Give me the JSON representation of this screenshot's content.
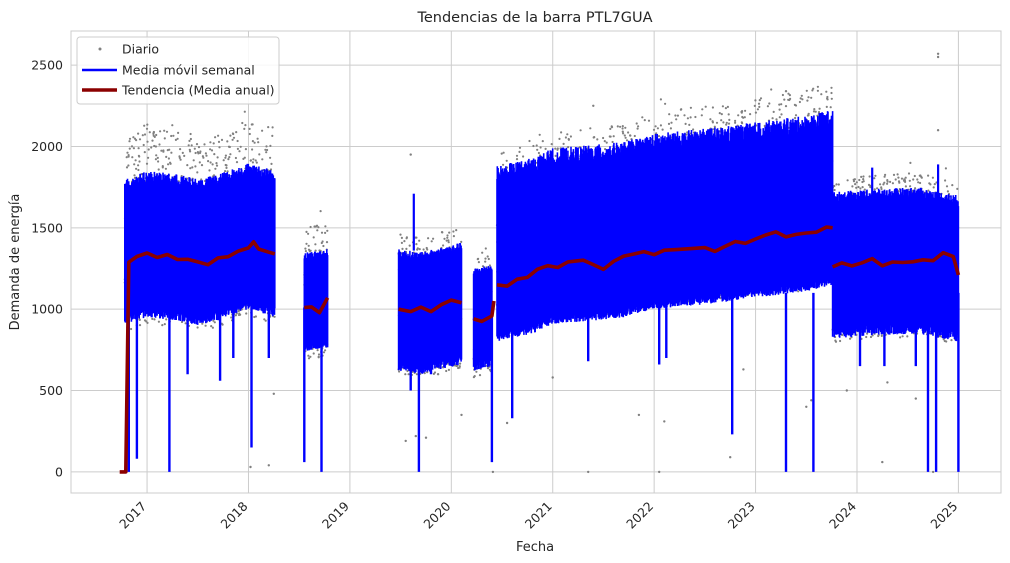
{
  "chart_data": {
    "type": "line",
    "title": "Tendencias de la barra PTL7GUA",
    "xlabel": "Fecha",
    "ylabel": "Demanda de energía",
    "xlim": [
      2016.25,
      2025.42
    ],
    "ylim": [
      -130,
      2710
    ],
    "x_ticks": [
      2017,
      2018,
      2019,
      2020,
      2021,
      2022,
      2023,
      2024,
      2025
    ],
    "x_tick_labels": [
      "2017",
      "2018",
      "2019",
      "2020",
      "2021",
      "2022",
      "2023",
      "2024",
      "2025"
    ],
    "y_ticks": [
      0,
      500,
      1000,
      1500,
      2000,
      2500
    ],
    "y_tick_labels": [
      "0",
      "500",
      "1000",
      "1500",
      "2000",
      "2500"
    ],
    "grid": true,
    "legend_position": "top-left",
    "colors": {
      "daily": "#808080",
      "weekly": "#0000ff",
      "trend": "#8b0000",
      "grid": "#cccccc"
    },
    "series": [
      {
        "name": "Diario",
        "kind": "points",
        "segments": [
          {
            "x0": 2016.78,
            "x1": 2018.26,
            "mid": [
              [
                2016.78,
                1300
              ],
              [
                2017.0,
                1350
              ],
              [
                2017.3,
                1330
              ],
              [
                2017.5,
                1300
              ],
              [
                2017.7,
                1330
              ],
              [
                2018.0,
                1400
              ],
              [
                2018.26,
                1350
              ]
            ],
            "upper": 2050,
            "lower": 860
          },
          {
            "x0": 2018.55,
            "x1": 2018.78,
            "mid": [
              [
                2018.55,
                1010
              ],
              [
                2018.78,
                1030
              ]
            ],
            "upper": 1500,
            "lower": 680
          },
          {
            "x0": 2019.48,
            "x1": 2020.1,
            "mid": [
              [
                2019.48,
                1010
              ],
              [
                2019.7,
                990
              ],
              [
                2020.1,
                1050
              ]
            ],
            "upper": 1470,
            "lower": 600
          },
          {
            "x0": 2020.22,
            "x1": 2020.4,
            "mid": [
              [
                2020.22,
                940
              ],
              [
                2020.4,
                970
              ]
            ],
            "upper": 1350,
            "lower": 580
          },
          {
            "x0": 2020.45,
            "x1": 2023.76,
            "mid": [
              [
                2020.45,
                1150
              ],
              [
                2020.8,
                1200
              ],
              [
                2021.0,
                1260
              ],
              [
                2021.4,
                1280
              ],
              [
                2021.7,
                1300
              ],
              [
                2022.0,
                1350
              ],
              [
                2022.5,
                1380
              ],
              [
                2023.0,
                1420
              ],
              [
                2023.5,
                1460
              ],
              [
                2023.76,
                1500
              ]
            ],
            "upper": 1950,
            "lower": 820
          },
          {
            "x0": 2023.76,
            "x1": 2025.0,
            "mid": [
              [
                2023.76,
                1270
              ],
              [
                2024.2,
                1290
              ],
              [
                2024.6,
                1300
              ],
              [
                2025.0,
                1250
              ]
            ],
            "upper": 1800,
            "lower": 800
          }
        ],
        "outliers": [
          [
            2016.75,
            0
          ],
          [
            2016.79,
            0
          ],
          [
            2018.02,
            30
          ],
          [
            2018.2,
            40
          ],
          [
            2018.25,
            480
          ],
          [
            2019.55,
            190
          ],
          [
            2019.65,
            220
          ],
          [
            2019.75,
            210
          ],
          [
            2019.87,
            600
          ],
          [
            2020.1,
            350
          ],
          [
            2020.41,
            0
          ],
          [
            2020.55,
            300
          ],
          [
            2021.0,
            580
          ],
          [
            2021.35,
            0
          ],
          [
            2021.85,
            350
          ],
          [
            2022.05,
            0
          ],
          [
            2022.1,
            310
          ],
          [
            2022.75,
            90
          ],
          [
            2022.88,
            630
          ],
          [
            2023.5,
            400
          ],
          [
            2023.55,
            440
          ],
          [
            2023.9,
            500
          ],
          [
            2024.25,
            60
          ],
          [
            2024.3,
            550
          ],
          [
            2024.58,
            450
          ],
          [
            2024.8,
            2100
          ],
          [
            2024.8,
            2570
          ],
          [
            2024.8,
            2550
          ],
          [
            2023.3,
            2340
          ],
          [
            2021.4,
            2250
          ],
          [
            2019.6,
            1950
          ],
          [
            2024.75,
            0
          ]
        ]
      },
      {
        "name": "Media móvil semanal",
        "kind": "band",
        "segments": [
          {
            "x0": 2016.78,
            "x1": 2018.26,
            "mid": [
              [
                2016.78,
                1300
              ],
              [
                2017.0,
                1350
              ],
              [
                2017.3,
                1330
              ],
              [
                2017.5,
                1300
              ],
              [
                2017.7,
                1330
              ],
              [
                2018.0,
                1400
              ],
              [
                2018.26,
                1350
              ]
            ],
            "upper": 1800,
            "lower": 900
          },
          {
            "x0": 2018.55,
            "x1": 2018.78,
            "mid": [
              [
                2018.55,
                1010
              ],
              [
                2018.78,
                1030
              ]
            ],
            "upper": 1350,
            "lower": 740
          },
          {
            "x0": 2019.48,
            "x1": 2020.1,
            "mid": [
              [
                2019.48,
                1010
              ],
              [
                2019.7,
                990
              ],
              [
                2020.1,
                1050
              ]
            ],
            "upper": 1370,
            "lower": 620
          },
          {
            "x0": 2020.22,
            "x1": 2020.4,
            "mid": [
              [
                2020.22,
                940
              ],
              [
                2020.4,
                970
              ]
            ],
            "upper": 1250,
            "lower": 620
          },
          {
            "x0": 2020.45,
            "x1": 2023.76,
            "mid": [
              [
                2020.45,
                1150
              ],
              [
                2020.8,
                1200
              ],
              [
                2021.0,
                1260
              ],
              [
                2021.4,
                1280
              ],
              [
                2021.7,
                1300
              ],
              [
                2022.0,
                1350
              ],
              [
                2022.5,
                1380
              ],
              [
                2023.0,
                1420
              ],
              [
                2023.5,
                1460
              ],
              [
                2023.76,
                1500
              ]
            ],
            "upper": 1880,
            "lower": 800
          },
          {
            "x0": 2023.76,
            "x1": 2025.0,
            "mid": [
              [
                2023.76,
                1270
              ],
              [
                2024.2,
                1290
              ],
              [
                2024.6,
                1300
              ],
              [
                2025.0,
                1250
              ]
            ],
            "upper": 1720,
            "lower": 820
          }
        ],
        "spikes": [
          [
            2016.82,
            0
          ],
          [
            2016.9,
            80
          ],
          [
            2017.22,
            0
          ],
          [
            2017.4,
            600
          ],
          [
            2017.72,
            560
          ],
          [
            2017.85,
            700
          ],
          [
            2018.03,
            150
          ],
          [
            2018.2,
            700
          ],
          [
            2018.55,
            60
          ],
          [
            2018.72,
            0
          ],
          [
            2019.6,
            500
          ],
          [
            2019.68,
            0
          ],
          [
            2019.8,
            600
          ],
          [
            2020.4,
            60
          ],
          [
            2020.6,
            330
          ],
          [
            2021.35,
            680
          ],
          [
            2022.05,
            660
          ],
          [
            2022.12,
            700
          ],
          [
            2022.77,
            230
          ],
          [
            2023.3,
            0
          ],
          [
            2023.57,
            0
          ],
          [
            2024.03,
            650
          ],
          [
            2024.27,
            650
          ],
          [
            2024.58,
            650
          ],
          [
            2024.7,
            0
          ],
          [
            2024.78,
            0
          ],
          [
            2025.0,
            0
          ]
        ],
        "peaks": [
          [
            2019.63,
            1710
          ],
          [
            2023.72,
            1990
          ],
          [
            2023.6,
            1960
          ],
          [
            2024.15,
            1870
          ],
          [
            2024.8,
            1890
          ]
        ]
      },
      {
        "name": "Tendencia (Media anual)",
        "kind": "line",
        "segments": [
          [
            [
              2016.73,
              0
            ],
            [
              2016.79,
              0
            ],
            [
              2016.82,
              1290
            ],
            [
              2016.9,
              1330
            ],
            [
              2017.0,
              1350
            ],
            [
              2017.1,
              1320
            ],
            [
              2017.2,
              1340
            ],
            [
              2017.3,
              1310
            ],
            [
              2017.4,
              1300
            ],
            [
              2017.5,
              1290
            ],
            [
              2017.6,
              1270
            ],
            [
              2017.7,
              1310
            ],
            [
              2017.8,
              1320
            ],
            [
              2017.9,
              1350
            ],
            [
              2018.0,
              1380
            ],
            [
              2018.05,
              1410
            ],
            [
              2018.1,
              1370
            ],
            [
              2018.2,
              1350
            ],
            [
              2018.26,
              1340
            ]
          ],
          [
            [
              2018.55,
              1010
            ],
            [
              2018.62,
              1010
            ],
            [
              2018.7,
              980
            ],
            [
              2018.78,
              1070
            ]
          ],
          [
            [
              2019.48,
              1000
            ],
            [
              2019.6,
              980
            ],
            [
              2019.7,
              1010
            ],
            [
              2019.8,
              990
            ],
            [
              2019.9,
              1030
            ],
            [
              2020.0,
              1050
            ],
            [
              2020.1,
              1040
            ]
          ],
          [
            [
              2020.22,
              940
            ],
            [
              2020.3,
              930
            ],
            [
              2020.4,
              960
            ],
            [
              2020.42,
              1050
            ]
          ],
          [
            [
              2020.45,
              1150
            ],
            [
              2020.55,
              1140
            ],
            [
              2020.65,
              1190
            ],
            [
              2020.75,
              1200
            ],
            [
              2020.85,
              1250
            ],
            [
              2020.95,
              1270
            ],
            [
              2021.05,
              1260
            ],
            [
              2021.15,
              1290
            ],
            [
              2021.3,
              1300
            ],
            [
              2021.4,
              1280
            ],
            [
              2021.5,
              1250
            ],
            [
              2021.6,
              1300
            ],
            [
              2021.7,
              1320
            ],
            [
              2021.8,
              1340
            ],
            [
              2021.9,
              1360
            ],
            [
              2022.0,
              1330
            ],
            [
              2022.1,
              1360
            ],
            [
              2022.2,
              1370
            ],
            [
              2022.35,
              1370
            ],
            [
              2022.5,
              1380
            ],
            [
              2022.6,
              1360
            ],
            [
              2022.7,
              1390
            ],
            [
              2022.8,
              1420
            ],
            [
              2022.9,
              1410
            ],
            [
              2023.0,
              1430
            ],
            [
              2023.1,
              1460
            ],
            [
              2023.2,
              1470
            ],
            [
              2023.3,
              1450
            ],
            [
              2023.4,
              1460
            ],
            [
              2023.5,
              1470
            ],
            [
              2023.6,
              1480
            ],
            [
              2023.7,
              1510
            ],
            [
              2023.76,
              1500
            ]
          ],
          [
            [
              2023.76,
              1260
            ],
            [
              2023.85,
              1280
            ],
            [
              2023.95,
              1270
            ],
            [
              2024.05,
              1290
            ],
            [
              2024.15,
              1310
            ],
            [
              2024.25,
              1270
            ],
            [
              2024.35,
              1290
            ],
            [
              2024.45,
              1280
            ],
            [
              2024.55,
              1290
            ],
            [
              2024.65,
              1310
            ],
            [
              2024.75,
              1300
            ],
            [
              2024.85,
              1350
            ],
            [
              2024.95,
              1330
            ],
            [
              2025.0,
              1210
            ]
          ]
        ]
      }
    ]
  }
}
